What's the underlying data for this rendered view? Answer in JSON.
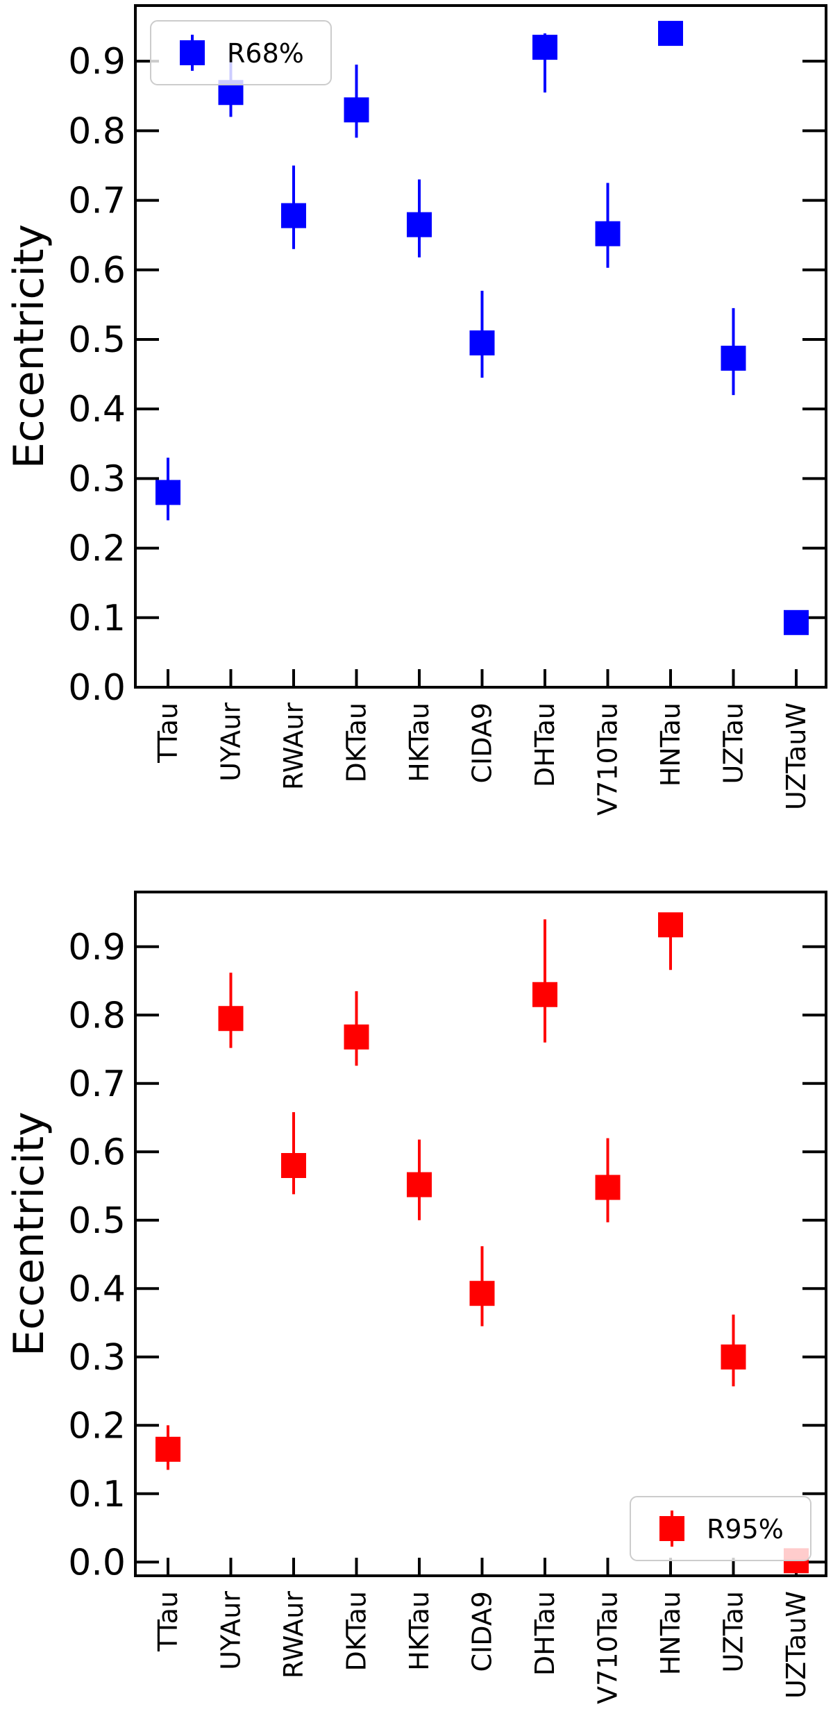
{
  "chart_data": [
    {
      "type": "scatter",
      "ylabel": "Eccentricity",
      "ylim": [
        0.0,
        0.98
      ],
      "yticks": [
        "0.0",
        "0.1",
        "0.2",
        "0.3",
        "0.4",
        "0.5",
        "0.6",
        "0.7",
        "0.8",
        "0.9"
      ],
      "categories": [
        "TTau",
        "UYAur",
        "RWAur",
        "DKTau",
        "HKTau",
        "CIDA9",
        "DHTau",
        "V710Tau",
        "HNTau",
        "UZTau",
        "UZTauW"
      ],
      "legend": {
        "label": "R68%",
        "placement": "top-left"
      },
      "series": [
        {
          "name": "R68%",
          "color": "#0000ff",
          "values": [
            0.28,
            0.855,
            0.678,
            0.83,
            0.665,
            0.495,
            0.92,
            0.652,
            0.94,
            0.473,
            0.093
          ],
          "error_low": [
            0.24,
            0.82,
            0.63,
            0.79,
            0.618,
            0.445,
            0.855,
            0.603,
            0.94,
            0.42,
            0.093
          ],
          "error_high": [
            0.33,
            0.925,
            0.75,
            0.895,
            0.73,
            0.57,
            0.94,
            0.725,
            0.94,
            0.545,
            0.093
          ]
        }
      ]
    },
    {
      "type": "scatter",
      "ylabel": "Eccentricity",
      "ylim": [
        -0.02,
        0.98
      ],
      "yticks": [
        "0.0",
        "0.1",
        "0.2",
        "0.3",
        "0.4",
        "0.5",
        "0.6",
        "0.7",
        "0.8",
        "0.9"
      ],
      "categories": [
        "TTau",
        "UYAur",
        "RWAur",
        "DKTau",
        "HKTau",
        "CIDA9",
        "DHTau",
        "V710Tau",
        "HNTau",
        "UZTau",
        "UZTauW"
      ],
      "legend": {
        "label": "R95%",
        "placement": "bottom-right"
      },
      "series": [
        {
          "name": "R95%",
          "color": "#ff0000",
          "values": [
            0.165,
            0.795,
            0.58,
            0.768,
            0.552,
            0.393,
            0.83,
            0.548,
            0.932,
            0.3,
            0.002
          ],
          "error_low": [
            0.135,
            0.752,
            0.538,
            0.726,
            0.5,
            0.345,
            0.76,
            0.497,
            0.866,
            0.257,
            0.002
          ],
          "error_high": [
            0.2,
            0.862,
            0.658,
            0.835,
            0.618,
            0.462,
            0.94,
            0.62,
            0.94,
            0.362,
            0.002
          ]
        }
      ]
    }
  ]
}
